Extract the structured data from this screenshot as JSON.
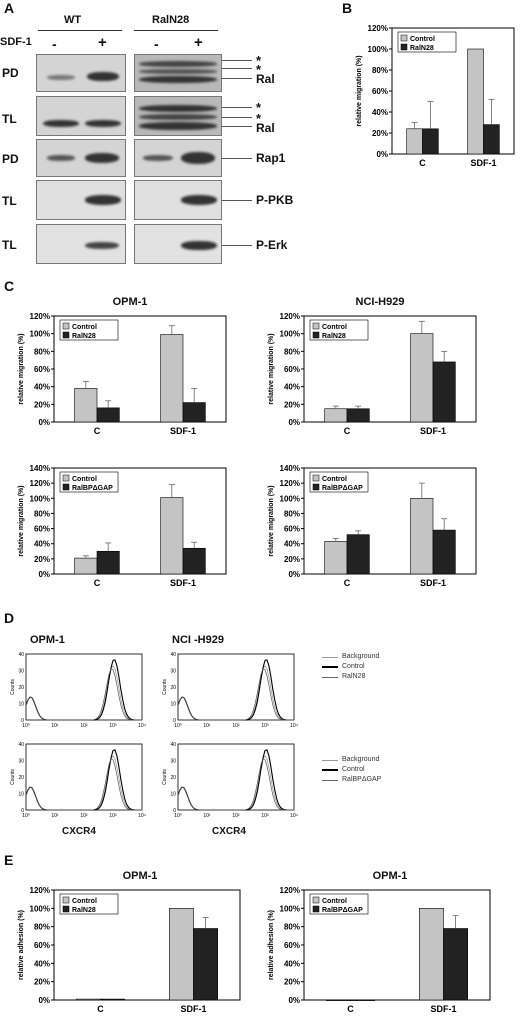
{
  "panels": {
    "A": "A",
    "B": "B",
    "C": "C",
    "D": "D",
    "E": "E"
  },
  "blot": {
    "wt_label": "WT",
    "raln28_label": "RalN28",
    "sdf1_label": "SDF-1",
    "minus": "-",
    "plus": "+",
    "rows": [
      {
        "row_label": "PD",
        "right_labels": [
          "*",
          "*",
          "Ral"
        ]
      },
      {
        "row_label": "TL",
        "right_labels": [
          "*",
          "*",
          "Ral"
        ]
      },
      {
        "row_label": "PD",
        "right_labels": [
          "Rap1"
        ]
      },
      {
        "row_label": "TL",
        "right_labels": [
          "P-PKB"
        ]
      },
      {
        "row_label": "TL",
        "right_labels": [
          "P-Erk"
        ]
      }
    ]
  },
  "flow": {
    "opm1_title": "OPM-1",
    "h929_title": "NCI -H929",
    "y_axis_label": "Counts",
    "x_axis_label": "CXCR4",
    "y_ticks": [
      "0",
      "10",
      "20",
      "30",
      "40"
    ],
    "x_ticks": [
      "10⁰",
      "10¹",
      "10²",
      "10³",
      "10⁴"
    ],
    "legend_top": [
      "Background",
      "Control",
      "RalN28"
    ],
    "legend_bottom": [
      "Background",
      "Control",
      "RalBPΔGAP"
    ]
  },
  "chart_data": [
    {
      "id": "B",
      "type": "bar",
      "title": "",
      "ylabel": "relative migration (%)",
      "categories": [
        "C",
        "SDF-1"
      ],
      "ylim": [
        0,
        120
      ],
      "yticks": [
        "0%",
        "20%",
        "40%",
        "60%",
        "80%",
        "100%",
        "120%"
      ],
      "series": [
        {
          "name": "Control",
          "values": [
            24,
            100
          ],
          "errors": [
            6,
            0
          ]
        },
        {
          "name": "RalN28",
          "values": [
            24,
            28
          ],
          "errors": [
            26,
            24
          ]
        }
      ]
    },
    {
      "id": "C1",
      "type": "bar",
      "title": "OPM-1",
      "ylabel": "relative migration (%)",
      "categories": [
        "C",
        "SDF-1"
      ],
      "ylim": [
        0,
        120
      ],
      "yticks": [
        "0%",
        "20%",
        "40%",
        "60%",
        "80%",
        "100%",
        "120%"
      ],
      "series": [
        {
          "name": "Control",
          "values": [
            38,
            99
          ],
          "errors": [
            8,
            10
          ]
        },
        {
          "name": "RalN28",
          "values": [
            16,
            22
          ],
          "errors": [
            8,
            16
          ]
        }
      ]
    },
    {
      "id": "C2",
      "type": "bar",
      "title": "NCI-H929",
      "ylabel": "relative migration (%)",
      "categories": [
        "C",
        "SDF-1"
      ],
      "ylim": [
        0,
        120
      ],
      "yticks": [
        "0%",
        "20%",
        "40%",
        "60%",
        "80%",
        "100%",
        "120%"
      ],
      "series": [
        {
          "name": "Control",
          "values": [
            15,
            100
          ],
          "errors": [
            3,
            14
          ]
        },
        {
          "name": "RalN28",
          "values": [
            15,
            68
          ],
          "errors": [
            3,
            12
          ]
        }
      ]
    },
    {
      "id": "C3",
      "type": "bar",
      "title": "",
      "ylabel": "relative migration (%)",
      "categories": [
        "C",
        "SDF-1"
      ],
      "ylim": [
        0,
        140
      ],
      "yticks": [
        "0%",
        "20%",
        "40%",
        "60%",
        "80%",
        "100%",
        "120%",
        "140%"
      ],
      "series": [
        {
          "name": "Control",
          "values": [
            21,
            101
          ],
          "errors": [
            3,
            17
          ]
        },
        {
          "name": "RalBPΔGAP",
          "values": [
            30,
            34
          ],
          "errors": [
            11,
            8
          ]
        }
      ]
    },
    {
      "id": "C4",
      "type": "bar",
      "title": "",
      "ylabel": "relative migration (%)",
      "categories": [
        "C",
        "SDF-1"
      ],
      "ylim": [
        0,
        140
      ],
      "yticks": [
        "0%",
        "20%",
        "40%",
        "60%",
        "80%",
        "100%",
        "120%",
        "140%"
      ],
      "series": [
        {
          "name": "Control",
          "values": [
            43,
            100
          ],
          "errors": [
            4,
            20
          ]
        },
        {
          "name": "RalBPΔGAP",
          "values": [
            52,
            58
          ],
          "errors": [
            5,
            15
          ]
        }
      ]
    },
    {
      "id": "E1",
      "type": "bar",
      "title": "OPM-1",
      "ylabel": "relative adhesion (%)",
      "categories": [
        "C",
        "SDF-1"
      ],
      "ylim": [
        0,
        120
      ],
      "yticks": [
        "0%",
        "20%",
        "40%",
        "60%",
        "80%",
        "100%",
        "120%"
      ],
      "series": [
        {
          "name": "Control",
          "values": [
            1,
            100
          ],
          "errors": [
            0,
            0
          ]
        },
        {
          "name": "RalN28",
          "values": [
            1,
            78
          ],
          "errors": [
            0,
            12
          ]
        }
      ]
    },
    {
      "id": "E2",
      "type": "bar",
      "title": "OPM-1",
      "ylabel": "relative adhesion (%)",
      "categories": [
        "C",
        "SDF-1"
      ],
      "ylim": [
        0,
        120
      ],
      "yticks": [
        "0%",
        "20%",
        "40%",
        "60%",
        "80%",
        "100%",
        "120%"
      ],
      "series": [
        {
          "name": "Control",
          "values": [
            0,
            100
          ],
          "errors": [
            0,
            0
          ]
        },
        {
          "name": "RalBPΔGAP",
          "values": [
            0,
            78
          ],
          "errors": [
            0,
            14
          ]
        }
      ]
    }
  ],
  "colors": {
    "control": "#c4c4c4",
    "treated": "#222222",
    "frame": "#000000"
  }
}
